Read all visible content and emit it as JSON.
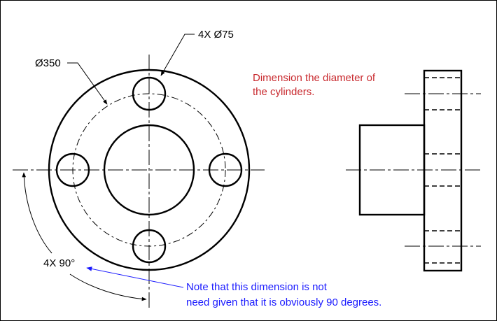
{
  "labels": {
    "hole_callout": "4X Ø75",
    "bolt_circle_diameter": "Ø350",
    "angle_callout": "4X 90°",
    "instruction_line1": "Dimension the diameter of",
    "instruction_line2": "the cylinders.",
    "note_line1": "Note that this dimension is not",
    "note_line2": "need given that it is obviously 90 degrees."
  },
  "colors": {
    "line": "#000000",
    "instruction": "#c8282d",
    "note": "#1a1aff",
    "background": "#ffffff"
  }
}
